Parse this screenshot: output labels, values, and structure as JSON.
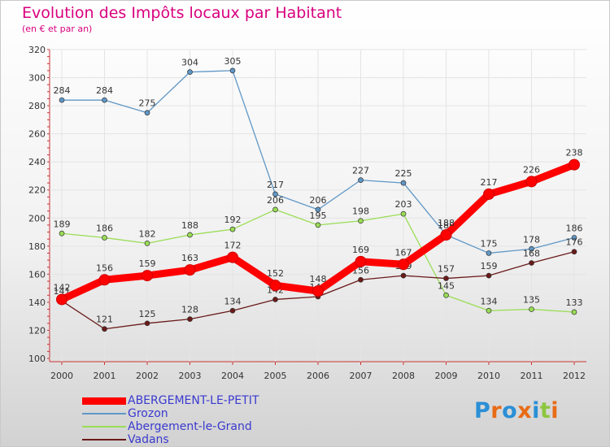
{
  "chart_data": {
    "type": "line",
    "title": "Evolution des Impôts locaux par Habitant",
    "subtitle": "(en € et par an)",
    "x": [
      "2000",
      "2001",
      "2002",
      "2003",
      "2004",
      "2005",
      "2006",
      "2007",
      "2008",
      "2009",
      "2010",
      "2011",
      "2012"
    ],
    "ylim": [
      100,
      320
    ],
    "yticks": [
      100,
      120,
      140,
      160,
      180,
      200,
      220,
      240,
      260,
      280,
      300,
      320
    ],
    "series": [
      {
        "name": "ABERGEMENT-LE-PETIT",
        "color": "#ff0000",
        "emphasis": true,
        "values": [
          142,
          156,
          159,
          163,
          172,
          152,
          148,
          169,
          167,
          188,
          217,
          226,
          238
        ]
      },
      {
        "name": "Grozon",
        "color": "#5f97c6",
        "values": [
          284,
          284,
          275,
          304,
          305,
          217,
          206,
          227,
          225,
          188,
          175,
          178,
          186
        ]
      },
      {
        "name": "Abergement-le-Grand",
        "color": "#99dd55",
        "values": [
          189,
          186,
          182,
          188,
          192,
          206,
          195,
          198,
          203,
          145,
          134,
          135,
          133
        ]
      },
      {
        "name": "Vadans",
        "color": "#6b1a1a",
        "values": [
          141,
          121,
          125,
          128,
          134,
          142,
          144,
          156,
          159,
          157,
          159,
          168,
          176
        ]
      }
    ]
  },
  "logo": {
    "text": "Proxiti",
    "letters": [
      "P",
      "r",
      "o",
      "x",
      "i",
      "t",
      "i"
    ],
    "colors": [
      "#2a8fd6",
      "#e86b16",
      "#2a8fd6",
      "#e86b16",
      "#2a8fd6",
      "#8cc63e",
      "#e86b16"
    ]
  }
}
